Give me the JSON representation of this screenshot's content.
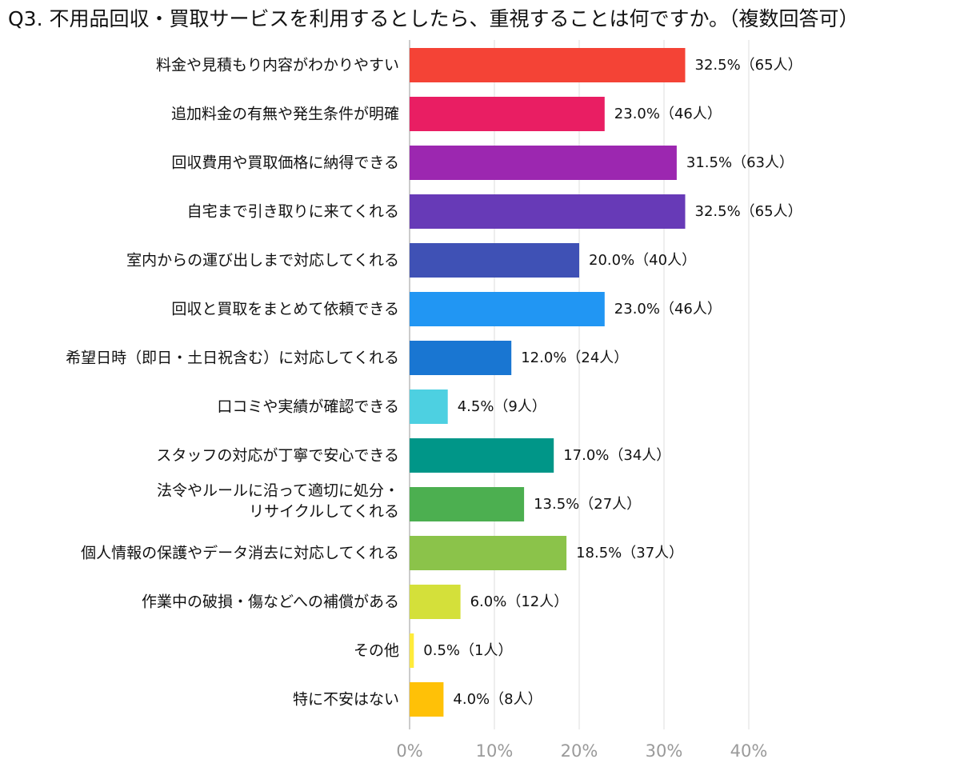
{
  "chart_data": {
    "type": "bar",
    "orientation": "horizontal",
    "title": "Q3. 不用品回収・買取サービスを利用するとしたら、重視することは何ですか。（複数回答可）",
    "categories": [
      "料金や見積もり内容がわかりやすい",
      "追加料金の有無や発生条件が明確",
      "回収費用や買取価格に納得できる",
      "自宅まで引き取りに来てくれる",
      "室内からの運び出しまで対応してくれる",
      "回収と買取をまとめて依頼できる",
      "希望日時（即日・土日祝含む）に対応してくれる",
      "口コミや実績が確認できる",
      "スタッフの対応が丁寧で安心できる",
      [
        "法令やルールに沿って適切に処分・",
        "リサイクルしてくれる"
      ],
      "個人情報の保護やデータ消去に対応してくれる",
      "作業中の破損・傷などへの補償がある",
      "その他",
      "特に不安はない"
    ],
    "values": [
      32.5,
      23.0,
      31.5,
      32.5,
      20.0,
      23.0,
      12.0,
      4.5,
      17.0,
      13.5,
      18.5,
      6.0,
      0.5,
      4.0
    ],
    "value_labels": [
      "32.5%（65人）",
      "23.0%（46人）",
      "31.5%（63人）",
      "32.5%（65人）",
      "20.0%（40人）",
      "23.0%（46人）",
      "12.0%（24人）",
      "4.5%（9人）",
      "17.0%（34人）",
      "13.5%（27人）",
      "18.5%（37人）",
      "6.0%（12人）",
      "0.5%（1人）",
      "4.0%（8人）"
    ],
    "colors": [
      "#f44336",
      "#e91e63",
      "#9c27b0",
      "#673ab7",
      "#3f51b5",
      "#2196f3",
      "#1976d2",
      "#4dd0e1",
      "#009688",
      "#4caf50",
      "#8bc34a",
      "#d4e03a",
      "#ffeb3b",
      "#ffc107"
    ],
    "xlim": [
      0,
      40
    ],
    "xticks": [
      0,
      10,
      20,
      30,
      40
    ],
    "xtick_labels": [
      "0%",
      "10%",
      "20%",
      "30%",
      "40%"
    ],
    "grid": true,
    "legend": "none"
  }
}
